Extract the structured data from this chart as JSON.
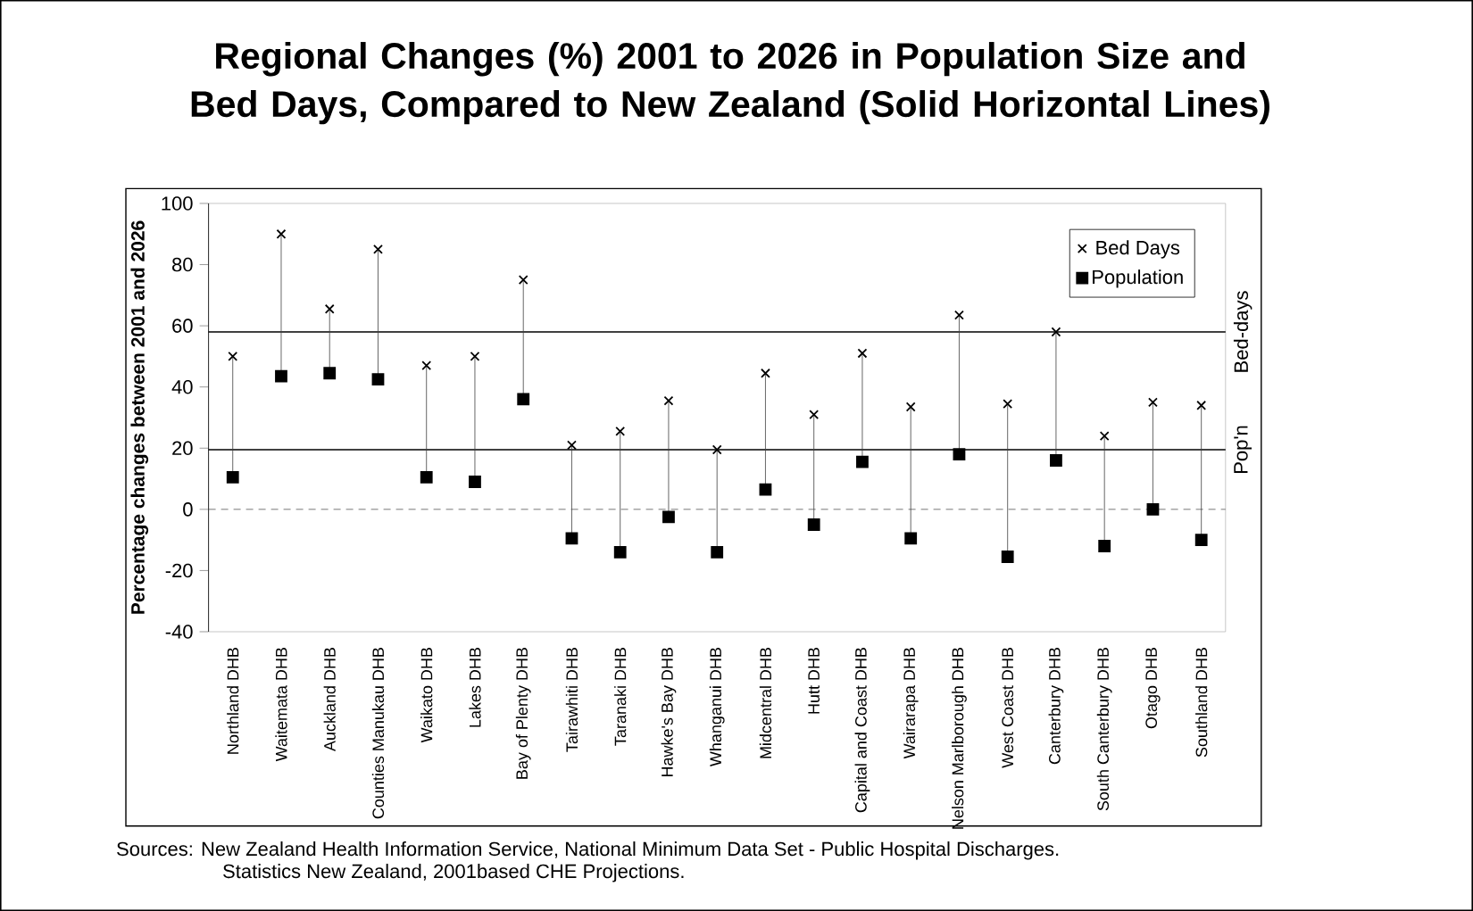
{
  "chart_data": {
    "type": "scatter",
    "title": "Regional Changes (%) 2001 to 2026 in Population Size and Bed Days, Compared to New Zealand (Solid Horizontal Lines)",
    "ylabel": "Percentage changes between 2001 and 2026",
    "categories": [
      "Northland DHB",
      "Waitemata DHB",
      "Auckland DHB",
      "Counties Manukau DHB",
      "Waikato DHB",
      "Lakes DHB",
      "Bay of Plenty DHB",
      "Tairawhiti DHB",
      "Taranaki DHB",
      "Hawke's Bay DHB",
      "Whanganui DHB",
      "Midcentral DHB",
      "Hutt DHB",
      "Capital and Coast DHB",
      "Wairarapa DHB",
      "Nelson Marlborough DHB",
      "West Coast DHB",
      "Canterbury DHB",
      "South Canterbury DHB",
      "Otago DHB",
      "Southland DHB"
    ],
    "series": [
      {
        "name": "Bed Days",
        "color": "#000000",
        "marker": "cross",
        "values": [
          50,
          90,
          65.5,
          85,
          47,
          50,
          75,
          21,
          25.5,
          35.5,
          19.5,
          44.5,
          31,
          51,
          33.5,
          63.5,
          34.5,
          58,
          24,
          35,
          34
        ]
      },
      {
        "name": "Population",
        "color": "#000000",
        "marker": "square",
        "values": [
          10.5,
          43.5,
          44.5,
          42.5,
          10.5,
          9,
          36,
          -9.5,
          -14,
          -2.5,
          -14,
          6.5,
          -5,
          15.5,
          -9.5,
          18,
          -15.5,
          16,
          -12,
          0,
          -10
        ]
      }
    ],
    "ylim": [
      -40,
      100
    ],
    "yticks": [
      -40,
      -20,
      0,
      20,
      40,
      60,
      80,
      100
    ],
    "ref_lines": [
      {
        "axis": "y",
        "value": 58,
        "label": "Bed-days",
        "color": "#000000",
        "line_style": "solid"
      },
      {
        "axis": "y",
        "value": 19.5,
        "label": "Pop'n",
        "color": "#000000",
        "line_style": "solid"
      },
      {
        "axis": "y",
        "value": 0,
        "color": "#555555",
        "line_style": "dashed"
      }
    ],
    "legend": "top right",
    "grid": false,
    "annotations": [
      "Sources: New Zealand Health Information Service, National Minimum Data Set - Public Hospital Discharges.",
      "Statistics New Zealand, 2001based CHE Projections."
    ]
  }
}
